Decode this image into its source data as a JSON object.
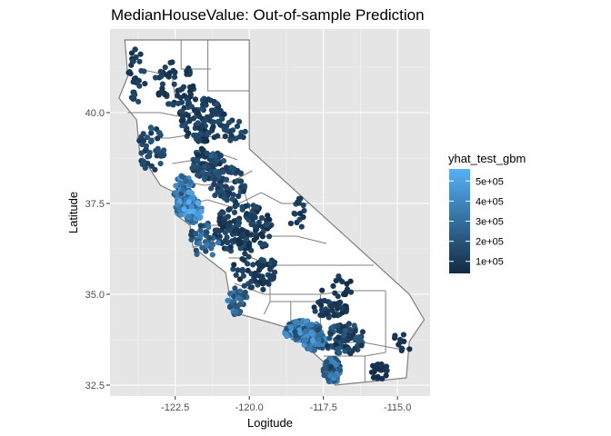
{
  "chart_data": {
    "type": "scatter",
    "title": "MedianHouseValue: Out-of-sample Prediction",
    "xlabel": "Logitude",
    "ylabel": "Latitude",
    "xlim": [
      -124.7,
      -113.9
    ],
    "ylim": [
      32.2,
      42.3
    ],
    "x_ticks": [
      {
        "value": -122.5,
        "label": "-122.5"
      },
      {
        "value": -120.0,
        "label": "-120.0"
      },
      {
        "value": -117.5,
        "label": "-117.5"
      },
      {
        "value": -115.0,
        "label": "-115.0"
      }
    ],
    "y_ticks": [
      {
        "value": 40.0,
        "label": "40.0"
      },
      {
        "value": 37.5,
        "label": "37.5"
      },
      {
        "value": 35.0,
        "label": "35.0"
      },
      {
        "value": 32.5,
        "label": "32.5"
      }
    ],
    "grid": true,
    "panel_background": "#e5e5e5",
    "map_fill": "#ffffff",
    "map_border_color": "#7f7f7f",
    "legend": {
      "title": "yhat_test_gbm",
      "placement": "right",
      "low_color": "#132b43",
      "high_color": "#56b1f7",
      "range": [
        40000,
        560000
      ],
      "breaks": [
        {
          "value": 500000,
          "label": "5e+05"
        },
        {
          "value": 400000,
          "label": "4e+05"
        },
        {
          "value": 300000,
          "label": "3e+05"
        },
        {
          "value": 200000,
          "label": "2e+05"
        },
        {
          "value": 100000,
          "label": "1e+05"
        }
      ]
    },
    "state_outline": [
      [
        -124.2,
        42.0
      ],
      [
        -120.0,
        42.0
      ],
      [
        -120.0,
        39.0
      ],
      [
        -114.6,
        35.0
      ],
      [
        -114.1,
        34.3
      ],
      [
        -114.6,
        33.7
      ],
      [
        -114.7,
        32.7
      ],
      [
        -117.1,
        32.5
      ],
      [
        -117.3,
        33.0
      ],
      [
        -118.4,
        33.8
      ],
      [
        -118.6,
        34.05
      ],
      [
        -119.2,
        34.2
      ],
      [
        -120.3,
        34.45
      ],
      [
        -120.65,
        34.9
      ],
      [
        -120.8,
        35.6
      ],
      [
        -121.9,
        36.3
      ],
      [
        -122.0,
        36.9
      ],
      [
        -122.5,
        37.2
      ],
      [
        -122.5,
        37.8
      ],
      [
        -123.0,
        38.0
      ],
      [
        -123.7,
        38.9
      ],
      [
        -123.8,
        39.8
      ],
      [
        -124.4,
        40.4
      ],
      [
        -124.1,
        41.0
      ],
      [
        -124.2,
        42.0
      ]
    ],
    "county_lines": [
      [
        [
          -122.3,
          42.0
        ],
        [
          -122.3,
          41.2
        ],
        [
          -121.3,
          41.2
        ]
      ],
      [
        [
          -121.4,
          42.0
        ],
        [
          -121.4,
          40.6
        ],
        [
          -120.0,
          40.6
        ]
      ],
      [
        [
          -123.7,
          41.2
        ],
        [
          -122.6,
          41.0
        ],
        [
          -122.5,
          40.4
        ],
        [
          -121.9,
          40.4
        ]
      ],
      [
        [
          -124.1,
          40.0
        ],
        [
          -123.0,
          40.0
        ],
        [
          -122.4,
          39.9
        ],
        [
          -121.5,
          40.1
        ]
      ],
      [
        [
          -123.8,
          39.3
        ],
        [
          -122.7,
          39.3
        ],
        [
          -121.9,
          39.4
        ],
        [
          -121.0,
          39.3
        ],
        [
          -120.3,
          39.3
        ]
      ],
      [
        [
          -122.6,
          38.6
        ],
        [
          -121.8,
          38.7
        ],
        [
          -121.1,
          38.9
        ],
        [
          -120.4,
          38.7
        ]
      ],
      [
        [
          -122.2,
          38.1
        ],
        [
          -121.5,
          38.0
        ],
        [
          -120.6,
          38.1
        ],
        [
          -119.9,
          38.4
        ]
      ],
      [
        [
          -122.0,
          37.5
        ],
        [
          -121.4,
          37.6
        ],
        [
          -120.6,
          37.4
        ],
        [
          -119.6,
          37.8
        ],
        [
          -118.9,
          37.5
        ],
        [
          -118.0,
          37.5
        ]
      ],
      [
        [
          -121.4,
          36.9
        ],
        [
          -120.4,
          36.9
        ],
        [
          -119.6,
          36.6
        ],
        [
          -118.4,
          36.6
        ],
        [
          -117.4,
          36.4
        ]
      ],
      [
        [
          -120.7,
          36.0
        ],
        [
          -119.9,
          36.0
        ],
        [
          -119.3,
          35.8
        ],
        [
          -118.3,
          35.8
        ],
        [
          -117.0,
          35.8
        ],
        [
          -115.8,
          35.8
        ]
      ],
      [
        [
          -120.5,
          35.3
        ],
        [
          -119.5,
          35.0
        ],
        [
          -118.6,
          35.0
        ],
        [
          -117.6,
          35.0
        ],
        [
          -116.6,
          35.1
        ],
        [
          -115.4,
          35.1
        ]
      ],
      [
        [
          -119.5,
          34.45
        ],
        [
          -119.3,
          34.8
        ],
        [
          -118.6,
          34.8
        ],
        [
          -117.6,
          34.8
        ]
      ],
      [
        [
          -118.6,
          34.1
        ],
        [
          -118.1,
          34.2
        ],
        [
          -117.7,
          34.0
        ],
        [
          -117.4,
          33.6
        ],
        [
          -116.3,
          33.7
        ],
        [
          -115.0,
          33.5
        ],
        [
          -114.5,
          33.5
        ]
      ],
      [
        [
          -117.5,
          33.3
        ],
        [
          -116.1,
          33.3
        ],
        [
          -115.4,
          33.4
        ]
      ],
      [
        [
          -116.1,
          33.3
        ],
        [
          -116.1,
          32.6
        ]
      ],
      [
        [
          -118.6,
          34.8
        ],
        [
          -118.6,
          34.1
        ]
      ],
      [
        [
          -117.6,
          35.0
        ],
        [
          -117.6,
          33.9
        ]
      ],
      [
        [
          -115.4,
          35.1
        ],
        [
          -115.4,
          33.4
        ]
      ],
      [
        [
          -120.2,
          37.9
        ],
        [
          -119.7,
          36.6
        ]
      ],
      [
        [
          -119.3,
          35.8
        ],
        [
          -119.3,
          34.8
        ]
      ],
      [
        [
          -121.9,
          36.3
        ],
        [
          -120.6,
          36.5
        ],
        [
          -119.9,
          36.0
        ]
      ]
    ],
    "clusters": [
      {
        "lon": -122.2,
        "lat": 37.7,
        "rlon": 0.35,
        "rlat": 0.6,
        "n": 140,
        "vmin": 180000,
        "vmax": 540000
      },
      {
        "lon": -121.9,
        "lat": 37.3,
        "rlon": 0.3,
        "rlat": 0.35,
        "n": 70,
        "vmin": 200000,
        "vmax": 560000
      },
      {
        "lon": -118.2,
        "lat": 34.0,
        "rlon": 0.65,
        "rlat": 0.28,
        "n": 210,
        "vmin": 150000,
        "vmax": 520000
      },
      {
        "lon": -117.2,
        "lat": 32.9,
        "rlon": 0.3,
        "rlat": 0.35,
        "n": 90,
        "vmin": 110000,
        "vmax": 420000
      },
      {
        "lon": -117.8,
        "lat": 33.7,
        "rlon": 0.4,
        "rlat": 0.25,
        "n": 80,
        "vmin": 180000,
        "vmax": 500000
      },
      {
        "lon": -121.4,
        "lat": 38.6,
        "rlon": 0.55,
        "rlat": 0.45,
        "n": 110,
        "vmin": 60000,
        "vmax": 240000
      },
      {
        "lon": -121.6,
        "lat": 39.8,
        "rlon": 0.8,
        "rlat": 0.6,
        "n": 110,
        "vmin": 50000,
        "vmax": 170000
      },
      {
        "lon": -122.5,
        "lat": 40.8,
        "rlon": 0.7,
        "rlat": 0.6,
        "n": 55,
        "vmin": 50000,
        "vmax": 150000
      },
      {
        "lon": -123.8,
        "lat": 41.0,
        "rlon": 0.3,
        "rlat": 0.8,
        "n": 30,
        "vmin": 60000,
        "vmax": 160000
      },
      {
        "lon": -123.3,
        "lat": 39.0,
        "rlon": 0.45,
        "rlat": 0.6,
        "n": 45,
        "vmin": 80000,
        "vmax": 220000
      },
      {
        "lon": -120.2,
        "lat": 36.8,
        "rlon": 1.0,
        "rlat": 0.7,
        "n": 150,
        "vmin": 50000,
        "vmax": 170000
      },
      {
        "lon": -119.8,
        "lat": 35.6,
        "rlon": 0.8,
        "rlat": 0.5,
        "n": 60,
        "vmin": 50000,
        "vmax": 160000
      },
      {
        "lon": -120.7,
        "lat": 38.0,
        "rlon": 0.6,
        "rlat": 0.5,
        "n": 60,
        "vmin": 70000,
        "vmax": 200000
      },
      {
        "lon": -121.5,
        "lat": 36.5,
        "rlon": 0.5,
        "rlat": 0.5,
        "n": 40,
        "vmin": 120000,
        "vmax": 350000
      },
      {
        "lon": -120.4,
        "lat": 34.8,
        "rlon": 0.35,
        "rlat": 0.4,
        "n": 40,
        "vmin": 150000,
        "vmax": 400000
      },
      {
        "lon": -116.8,
        "lat": 33.8,
        "rlon": 0.7,
        "rlat": 0.45,
        "n": 90,
        "vmin": 60000,
        "vmax": 220000
      },
      {
        "lon": -117.3,
        "lat": 34.6,
        "rlon": 0.6,
        "rlat": 0.25,
        "n": 40,
        "vmin": 50000,
        "vmax": 140000
      },
      {
        "lon": -115.6,
        "lat": 32.9,
        "rlon": 0.35,
        "rlat": 0.25,
        "n": 20,
        "vmin": 50000,
        "vmax": 110000
      },
      {
        "lon": -114.8,
        "lat": 33.7,
        "rlon": 0.35,
        "rlat": 0.3,
        "n": 10,
        "vmin": 50000,
        "vmax": 100000
      },
      {
        "lon": -118.4,
        "lat": 37.2,
        "rlon": 0.3,
        "rlat": 0.5,
        "n": 15,
        "vmin": 60000,
        "vmax": 160000
      },
      {
        "lon": -117.0,
        "lat": 35.2,
        "rlon": 0.6,
        "rlat": 0.3,
        "n": 15,
        "vmin": 50000,
        "vmax": 120000
      },
      {
        "lon": -120.5,
        "lat": 39.4,
        "rlon": 0.4,
        "rlat": 0.4,
        "n": 20,
        "vmin": 70000,
        "vmax": 190000
      }
    ]
  }
}
